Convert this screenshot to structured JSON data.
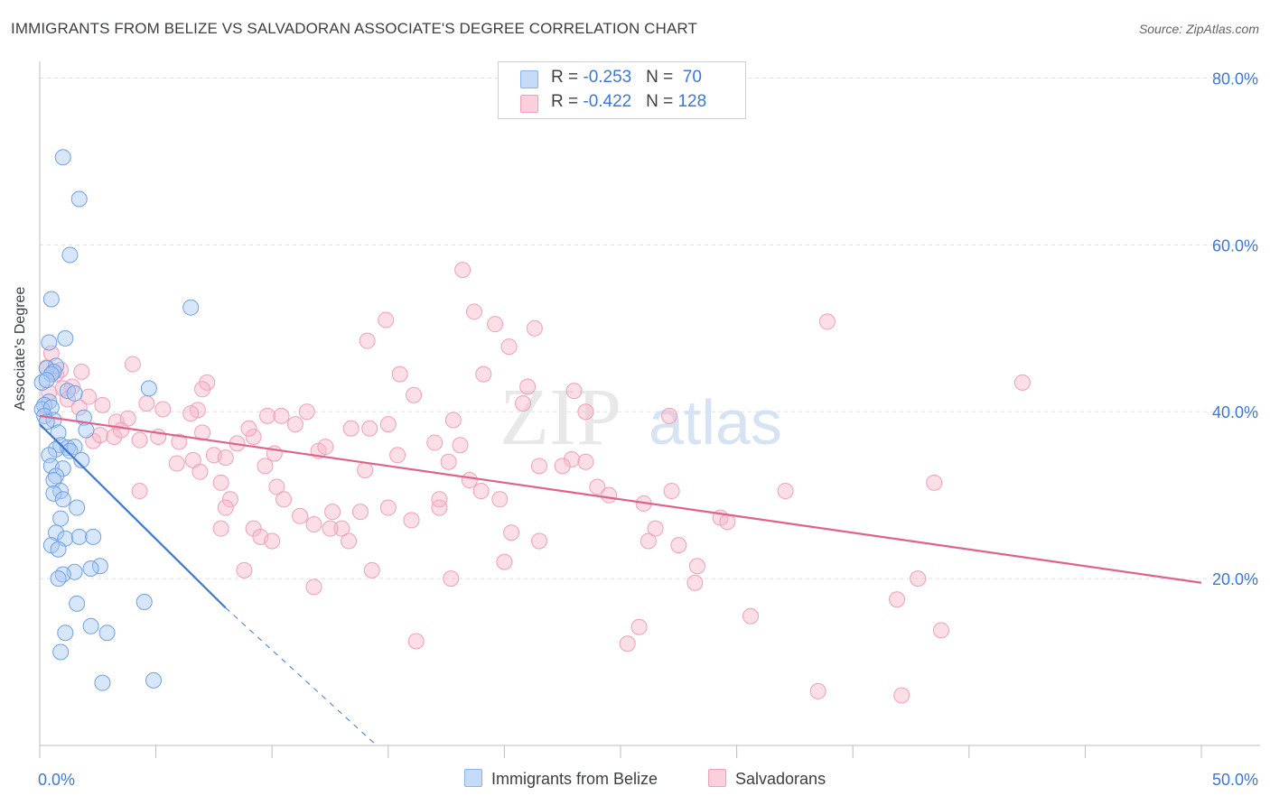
{
  "title": "IMMIGRANTS FROM BELIZE VS SALVADORAN ASSOCIATE'S DEGREE CORRELATION CHART",
  "source": "Source: ZipAtlas.com",
  "watermark": {
    "zip": "ZIP",
    "atlas": "atlas"
  },
  "legend": {
    "rows": [
      {
        "r_label": "R = ",
        "r_value": "-0.253",
        "n_label": "N = ",
        "n_value": "70",
        "color": "#a8c8f5"
      },
      {
        "r_label": "R = ",
        "r_value": "-0.422",
        "n_label": "N = ",
        "n_value": "128",
        "color": "#f7b6c8"
      }
    ]
  },
  "bottom_legend": [
    {
      "label": "Immigrants from Belize",
      "color": "#a8c8f5"
    },
    {
      "label": "Salvadorans",
      "color": "#f7b6c8"
    }
  ],
  "colors": {
    "blue": "#3b78d8",
    "blue_fill": "#a8c8f5",
    "pink": "#e0628a",
    "pink_fill": "#f7b6c8",
    "grid": "#e0e0e0",
    "axis_text": "#3b78d8"
  },
  "chart_data": {
    "type": "scatter",
    "xlabel": "",
    "ylabel": "Associate's Degree",
    "xlim": [
      0,
      50
    ],
    "ylim": [
      0,
      82
    ],
    "x_tick_labels": [
      {
        "value": 0,
        "label": "0.0%"
      },
      {
        "value": 50,
        "label": "50.0%"
      }
    ],
    "y_tick_labels": [
      {
        "value": 20,
        "label": "20.0%"
      },
      {
        "value": 40,
        "label": "40.0%"
      },
      {
        "value": 60,
        "label": "60.0%"
      },
      {
        "value": 80,
        "label": "80.0%"
      }
    ],
    "series": [
      {
        "name": "Immigrants from Belize",
        "color": "#3b78d8",
        "points": [
          [
            1.0,
            70.5
          ],
          [
            1.7,
            65.5
          ],
          [
            1.3,
            58.8
          ],
          [
            0.5,
            53.5
          ],
          [
            6.5,
            52.5
          ],
          [
            1.1,
            48.8
          ],
          [
            0.4,
            48.3
          ],
          [
            0.7,
            45.5
          ],
          [
            0.3,
            45.2
          ],
          [
            0.6,
            44.8
          ],
          [
            0.5,
            44.5
          ],
          [
            0.1,
            43.5
          ],
          [
            0.3,
            43.8
          ],
          [
            1.2,
            42.5
          ],
          [
            4.7,
            42.8
          ],
          [
            1.5,
            42.2
          ],
          [
            0.4,
            41.2
          ],
          [
            0.2,
            40.8
          ],
          [
            0.1,
            40.3
          ],
          [
            0.5,
            40.5
          ],
          [
            0.2,
            39.5
          ],
          [
            0.6,
            39.0
          ],
          [
            1.9,
            39.3
          ],
          [
            0.3,
            38.8
          ],
          [
            0.8,
            37.5
          ],
          [
            2.0,
            37.8
          ],
          [
            0.9,
            36.0
          ],
          [
            1.2,
            35.7
          ],
          [
            1.5,
            35.8
          ],
          [
            0.7,
            35.5
          ],
          [
            1.3,
            35.3
          ],
          [
            0.4,
            34.8
          ],
          [
            1.8,
            34.2
          ],
          [
            0.5,
            33.5
          ],
          [
            1.0,
            33.2
          ],
          [
            0.7,
            32.3
          ],
          [
            0.6,
            31.8
          ],
          [
            0.9,
            30.5
          ],
          [
            0.6,
            30.2
          ],
          [
            1.0,
            29.5
          ],
          [
            1.6,
            28.5
          ],
          [
            0.9,
            27.2
          ],
          [
            0.7,
            25.5
          ],
          [
            1.1,
            24.8
          ],
          [
            1.7,
            25.0
          ],
          [
            2.3,
            25.0
          ],
          [
            0.5,
            24.0
          ],
          [
            0.8,
            23.5
          ],
          [
            2.6,
            21.5
          ],
          [
            2.2,
            21.2
          ],
          [
            1.5,
            20.8
          ],
          [
            1.0,
            20.5
          ],
          [
            0.8,
            20.0
          ],
          [
            1.6,
            17.0
          ],
          [
            4.5,
            17.2
          ],
          [
            2.2,
            14.3
          ],
          [
            1.1,
            13.5
          ],
          [
            2.9,
            13.5
          ],
          [
            0.9,
            11.2
          ],
          [
            2.7,
            7.5
          ],
          [
            4.9,
            7.8
          ]
        ],
        "trend": {
          "x1": 0,
          "y1": 38.5,
          "x2": 8.0,
          "y2": 16.5
        },
        "trend_extension": {
          "x1": 8.0,
          "y1": 16.5,
          "x2": 14.5,
          "y2": 0
        }
      },
      {
        "name": "Salvadorans",
        "color": "#e0628a",
        "points": [
          [
            0.5,
            47.0
          ],
          [
            0.3,
            45.3
          ],
          [
            0.7,
            44.5
          ],
          [
            1.8,
            44.8
          ],
          [
            1.0,
            42.8
          ],
          [
            0.4,
            42.3
          ],
          [
            1.2,
            41.5
          ],
          [
            1.7,
            40.5
          ],
          [
            2.7,
            40.8
          ],
          [
            5.3,
            40.3
          ],
          [
            4.6,
            41.0
          ],
          [
            6.8,
            40.2
          ],
          [
            7.2,
            43.5
          ],
          [
            6.5,
            39.8
          ],
          [
            7.0,
            42.7
          ],
          [
            4.0,
            45.7
          ],
          [
            3.3,
            38.8
          ],
          [
            3.8,
            39.2
          ],
          [
            2.3,
            36.5
          ],
          [
            2.6,
            37.2
          ],
          [
            3.2,
            37.0
          ],
          [
            3.5,
            37.8
          ],
          [
            4.3,
            36.6
          ],
          [
            5.1,
            37.0
          ],
          [
            6.0,
            36.4
          ],
          [
            6.6,
            34.2
          ],
          [
            7.5,
            34.8
          ],
          [
            8.0,
            34.5
          ],
          [
            8.5,
            36.2
          ],
          [
            9.2,
            37.0
          ],
          [
            9.0,
            38.0
          ],
          [
            9.8,
            39.5
          ],
          [
            10.4,
            39.5
          ],
          [
            11.0,
            38.5
          ],
          [
            11.5,
            40.0
          ],
          [
            12.0,
            35.3
          ],
          [
            12.3,
            35.8
          ],
          [
            13.4,
            38.0
          ],
          [
            14.2,
            38.0
          ],
          [
            14.0,
            33.0
          ],
          [
            15.4,
            34.8
          ],
          [
            15.5,
            44.5
          ],
          [
            16.1,
            42.0
          ],
          [
            17.0,
            36.3
          ],
          [
            17.6,
            34.0
          ],
          [
            18.1,
            36.0
          ],
          [
            18.5,
            31.8
          ],
          [
            19.0,
            30.5
          ],
          [
            19.8,
            29.5
          ],
          [
            17.2,
            28.5
          ],
          [
            17.2,
            29.5
          ],
          [
            16.0,
            27.0
          ],
          [
            15.0,
            28.5
          ],
          [
            13.8,
            28.0
          ],
          [
            12.6,
            28.0
          ],
          [
            11.8,
            26.5
          ],
          [
            13.0,
            26.0
          ],
          [
            10.2,
            31.0
          ],
          [
            10.5,
            29.5
          ],
          [
            9.7,
            33.5
          ],
          [
            9.2,
            26.0
          ],
          [
            8.2,
            29.5
          ],
          [
            6.9,
            32.8
          ],
          [
            5.9,
            33.8
          ],
          [
            4.3,
            30.5
          ],
          [
            7.8,
            31.5
          ],
          [
            8.0,
            28.5
          ],
          [
            7.8,
            26.0
          ],
          [
            9.5,
            25.0
          ],
          [
            10.0,
            24.5
          ],
          [
            12.5,
            26.0
          ],
          [
            11.2,
            27.5
          ],
          [
            13.3,
            24.5
          ],
          [
            8.8,
            21.0
          ],
          [
            11.8,
            19.0
          ],
          [
            14.3,
            21.0
          ],
          [
            17.7,
            20.0
          ],
          [
            16.2,
            12.5
          ],
          [
            20.0,
            22.0
          ],
          [
            20.3,
            25.5
          ],
          [
            21.5,
            24.5
          ],
          [
            21.5,
            33.5
          ],
          [
            22.9,
            34.3
          ],
          [
            23.0,
            42.5
          ],
          [
            23.5,
            40.0
          ],
          [
            24.0,
            31.0
          ],
          [
            24.5,
            30.0
          ],
          [
            22.5,
            33.5
          ],
          [
            23.5,
            34.0
          ],
          [
            20.8,
            41.0
          ],
          [
            19.1,
            44.5
          ],
          [
            18.7,
            52.0
          ],
          [
            18.2,
            57.0
          ],
          [
            19.6,
            50.5
          ],
          [
            20.2,
            47.8
          ],
          [
            21.3,
            50.0
          ],
          [
            14.9,
            51.0
          ],
          [
            14.1,
            48.5
          ],
          [
            26.0,
            29.0
          ],
          [
            26.2,
            24.5
          ],
          [
            26.5,
            26.0
          ],
          [
            27.2,
            30.5
          ],
          [
            27.5,
            24.0
          ],
          [
            27.1,
            39.5
          ],
          [
            28.3,
            21.5
          ],
          [
            28.2,
            19.5
          ],
          [
            29.3,
            27.3
          ],
          [
            29.6,
            26.8
          ],
          [
            25.3,
            12.2
          ],
          [
            25.8,
            14.2
          ],
          [
            30.6,
            15.5
          ],
          [
            32.1,
            30.5
          ],
          [
            33.9,
            50.8
          ],
          [
            33.5,
            6.5
          ],
          [
            36.9,
            17.5
          ],
          [
            37.8,
            20.0
          ],
          [
            38.5,
            31.5
          ],
          [
            38.8,
            13.8
          ],
          [
            42.3,
            43.5
          ],
          [
            37.1,
            6.0
          ],
          [
            0.9,
            45.0
          ],
          [
            1.4,
            43.0
          ],
          [
            2.1,
            41.8
          ],
          [
            7.0,
            37.5
          ],
          [
            10.1,
            35.0
          ],
          [
            15.0,
            38.5
          ],
          [
            17.8,
            39.0
          ],
          [
            21.0,
            43.0
          ]
        ],
        "trend": {
          "x1": 0,
          "y1": 39.5,
          "x2": 50,
          "y2": 19.5
        }
      }
    ]
  }
}
